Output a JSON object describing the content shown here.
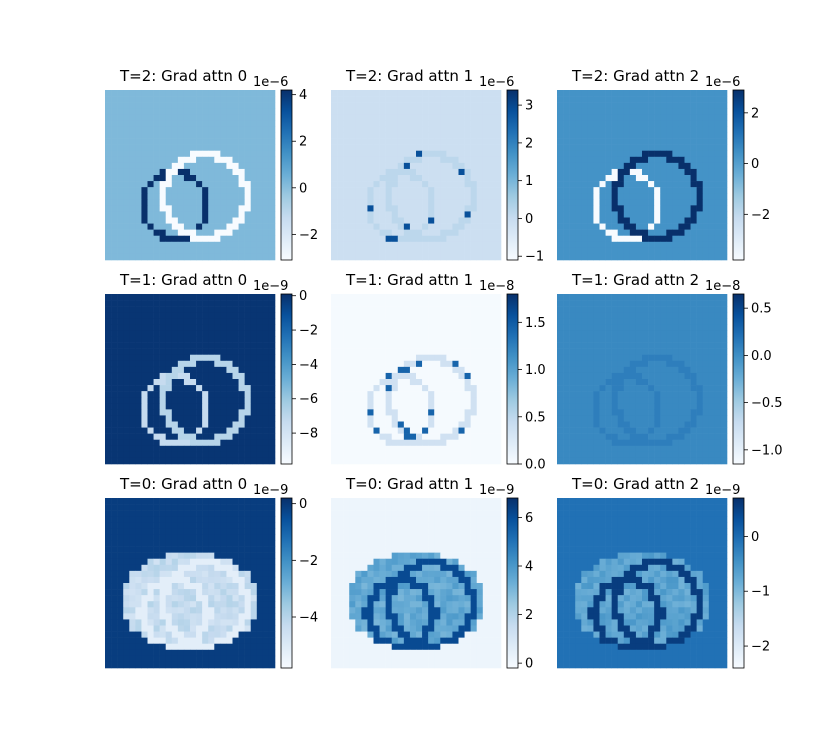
{
  "chart_data": [
    {
      "type": "heatmap",
      "title": "T=2: Grad attn 0",
      "colormap": "Blues",
      "colorbar": {
        "exponent": "1e−6",
        "ticks": [
          4,
          2,
          0,
          -2
        ],
        "range": [
          -3.1,
          4.2
        ]
      },
      "pattern": "rings",
      "background": 0.45,
      "outline": [
        1.0,
        0.0
      ]
    },
    {
      "type": "heatmap",
      "title": "T=2: Grad attn 1",
      "colormap": "Blues",
      "colorbar": {
        "exponent": "1e−6",
        "ticks": [
          3,
          2,
          1,
          0,
          -1
        ],
        "range": [
          -1.1,
          3.4
        ]
      },
      "pattern": "sparse",
      "background": 0.22,
      "outline": [
        0.28,
        0.28
      ]
    },
    {
      "type": "heatmap",
      "title": "T=2: Grad attn 2",
      "colormap": "Blues",
      "colorbar": {
        "exponent": "1e−6",
        "ticks": [
          2,
          0,
          -2
        ],
        "range": [
          -3.8,
          2.9
        ]
      },
      "pattern": "rings",
      "background": 0.62,
      "outline": [
        0.0,
        1.0
      ]
    },
    {
      "type": "heatmap",
      "title": "T=1: Grad attn 0",
      "colormap": "Blues",
      "colorbar": {
        "exponent": "1e−9",
        "ticks": [
          0,
          -2,
          -4,
          -6,
          -8
        ],
        "range": [
          -9.8,
          0.1
        ]
      },
      "pattern": "rings",
      "background": 0.98,
      "outline": [
        0.25,
        0.3
      ]
    },
    {
      "type": "heatmap",
      "title": "T=1: Grad attn 1",
      "colormap": "Blues",
      "colorbar": {
        "exponent": "1e−8",
        "ticks": [
          1.5,
          1.0,
          0.5,
          0.0
        ],
        "range": [
          0.0,
          1.8
        ]
      },
      "pattern": "sparse",
      "background": 0.01,
      "outline": [
        0.2,
        0.2
      ]
    },
    {
      "type": "heatmap",
      "title": "T=1: Grad attn 2",
      "colormap": "Blues",
      "colorbar": {
        "exponent": "1e−8",
        "ticks": [
          0.5,
          0.0,
          -0.5,
          -1.0
        ],
        "range": [
          -1.15,
          0.65
        ]
      },
      "pattern": "rings",
      "background": 0.66,
      "outline": [
        0.7,
        0.7
      ]
    },
    {
      "type": "heatmap",
      "title": "T=0: Grad attn 0",
      "colormap": "Blues",
      "colorbar": {
        "exponent": "1e−9",
        "ticks": [
          0,
          -2,
          -4
        ],
        "range": [
          -5.8,
          0.2
        ]
      },
      "pattern": "blob",
      "background": 0.95,
      "outline": [
        0.1,
        0.1
      ]
    },
    {
      "type": "heatmap",
      "title": "T=0: Grad attn 1",
      "colormap": "Blues",
      "colorbar": {
        "exponent": "1e−9",
        "ticks": [
          6,
          4,
          2,
          0
        ],
        "range": [
          -0.2,
          6.8
        ]
      },
      "pattern": "blob",
      "background": 0.05,
      "outline": [
        0.9,
        0.9
      ]
    },
    {
      "type": "heatmap",
      "title": "T=0: Grad attn 2",
      "colormap": "Blues",
      "colorbar": {
        "exponent": "1e−9",
        "ticks": [
          0,
          -1,
          -2
        ],
        "range": [
          -2.4,
          0.7
        ]
      },
      "pattern": "blob",
      "background": 0.75,
      "outline": [
        0.95,
        0.95
      ]
    }
  ]
}
